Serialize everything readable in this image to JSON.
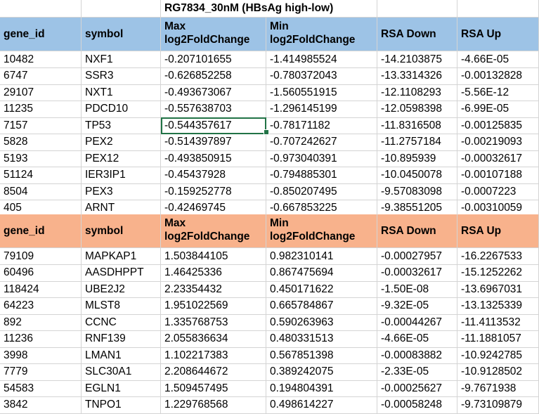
{
  "sheet": {
    "title": "RG7834_30nM (HBsAg high-low)",
    "colors": {
      "header_top": "#9dc3e6",
      "header_bottom": "#f8b28c",
      "selection": "#217346",
      "gridline": "#d4d4d4"
    },
    "columns": [
      "gene_id",
      "symbol",
      "Max log2FoldChange",
      "Min log2FoldChange",
      "RSA Down",
      "RSA Up"
    ],
    "header_top": [
      "gene_id",
      "symbol",
      "Max\nlog2FoldChange",
      "Min\nlog2FoldChange",
      "RSA Down",
      "RSA Up"
    ],
    "rows_top": [
      [
        "10482",
        "NXF1",
        "-0.207101655",
        "-1.414985524",
        "-14.2103875",
        "-4.66E-05"
      ],
      [
        "6747",
        "SSR3",
        "-0.626852258",
        "-0.780372043",
        "-13.3314326",
        "-0.00132828"
      ],
      [
        "29107",
        "NXT1",
        "-0.493673067",
        "-1.560551915",
        "-12.1108293",
        "-5.56E-12"
      ],
      [
        "11235",
        "PDCD10",
        "-0.557638703",
        "-1.296145199",
        "-12.0598398",
        "-6.99E-05"
      ],
      [
        "7157",
        "TP53",
        "-0.544357617",
        "-0.78171182",
        "-11.8316508",
        "-0.00125835"
      ],
      [
        "5828",
        "PEX2",
        "-0.514397897",
        "-0.707242627",
        "-11.2757184",
        "-0.00219093"
      ],
      [
        "5193",
        "PEX12",
        "-0.493850915",
        "-0.973040391",
        "-10.895939",
        "-0.00032617"
      ],
      [
        "51124",
        "IER3IP1",
        "-0.45437928",
        "-0.794885301",
        "-10.0450078",
        "-0.00107188"
      ],
      [
        "8504",
        "PEX3",
        "-0.159252778",
        "-0.850207495",
        "-9.57083098",
        "-0.0007223"
      ],
      [
        "405",
        "ARNT",
        "-0.42469745",
        "-0.667853225",
        "-9.38551205",
        "-0.00310059"
      ]
    ],
    "header_bottom": [
      "gene_id",
      "symbol",
      "Max\nlog2FoldChange",
      "Min\nlog2FoldChange",
      "RSA Down",
      "RSA Up"
    ],
    "rows_bottom": [
      [
        "79109",
        "MAPKAP1",
        "1.503844105",
        "0.982310141",
        "-0.00027957",
        "-16.2267533"
      ],
      [
        "60496",
        "AASDHPPT",
        "1.46425336",
        "0.867475694",
        "-0.00032617",
        "-15.1252262"
      ],
      [
        "118424",
        "UBE2J2",
        "2.23354432",
        "0.450171622",
        "-1.50E-08",
        "-13.6967031"
      ],
      [
        "64223",
        "MLST8",
        "1.951022569",
        "0.665784867",
        "-9.32E-05",
        "-13.1325339"
      ],
      [
        "892",
        "CCNC",
        "1.335768753",
        "0.590263963",
        "-0.00044267",
        "-11.4113532"
      ],
      [
        "11236",
        "RNF139",
        "2.055836634",
        "0.480331513",
        "-4.66E-05",
        "-11.1881057"
      ],
      [
        "3998",
        "LMAN1",
        "1.102217383",
        "0.567851398",
        "-0.00083882",
        "-10.9242785"
      ],
      [
        "7779",
        "SLC30A1",
        "2.208644672",
        "0.389242075",
        "-2.33E-05",
        "-10.9128502"
      ],
      [
        "54583",
        "EGLN1",
        "1.509457495",
        "0.194804391",
        "-0.00025627",
        "-9.7671938"
      ],
      [
        "3842",
        "TNPO1",
        "1.229768568",
        "0.498614227",
        "-0.00058248",
        "-9.73109879"
      ]
    ]
  }
}
